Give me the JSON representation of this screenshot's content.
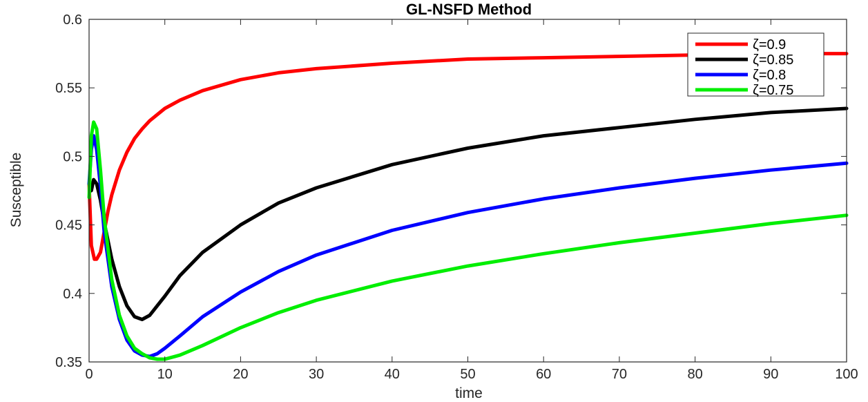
{
  "chart_data": {
    "type": "line",
    "title": "GL-NSFD Method",
    "xlabel": "time",
    "ylabel": "Susceptible",
    "xlim": [
      0,
      100
    ],
    "ylim": [
      0.35,
      0.6
    ],
    "xticks": [
      "0",
      "10",
      "20",
      "30",
      "40",
      "50",
      "60",
      "70",
      "80",
      "90",
      "100"
    ],
    "yticks": [
      "0.35",
      "0.4",
      "0.45",
      "0.5",
      "0.55",
      "0.6"
    ],
    "grid": false,
    "legend_position": "top-right",
    "series": [
      {
        "name": "ζ=0.9",
        "color": "#ff0000",
        "x": [
          0,
          0.3,
          0.7,
          1.0,
          1.5,
          2.0,
          2.5,
          3,
          4,
          5,
          6,
          7,
          8,
          10,
          12,
          15,
          20,
          25,
          30,
          40,
          50,
          60,
          70,
          80,
          90,
          100
        ],
        "y": [
          0.48,
          0.435,
          0.425,
          0.425,
          0.43,
          0.445,
          0.46,
          0.472,
          0.49,
          0.503,
          0.513,
          0.52,
          0.526,
          0.535,
          0.541,
          0.548,
          0.556,
          0.561,
          0.564,
          0.568,
          0.571,
          0.572,
          0.573,
          0.574,
          0.575,
          0.575
        ]
      },
      {
        "name": "ζ=0.85",
        "color": "#000000",
        "x": [
          0,
          0.3,
          0.6,
          1.0,
          1.5,
          2.0,
          3,
          4,
          5,
          6,
          7,
          8,
          9,
          10,
          12,
          15,
          20,
          25,
          30,
          40,
          50,
          60,
          70,
          80,
          90,
          100
        ],
        "y": [
          0.48,
          0.475,
          0.483,
          0.48,
          0.468,
          0.452,
          0.425,
          0.405,
          0.391,
          0.383,
          0.381,
          0.384,
          0.391,
          0.398,
          0.413,
          0.43,
          0.45,
          0.466,
          0.477,
          0.494,
          0.506,
          0.515,
          0.521,
          0.527,
          0.532,
          0.535
        ]
      },
      {
        "name": "ζ=0.8",
        "color": "#0000ff",
        "x": [
          0,
          0.3,
          0.6,
          1.0,
          1.5,
          2.0,
          3,
          4,
          5,
          6,
          7,
          8,
          9,
          10,
          12,
          15,
          20,
          25,
          30,
          40,
          50,
          60,
          70,
          80,
          90,
          100
        ],
        "y": [
          0.48,
          0.505,
          0.515,
          0.505,
          0.478,
          0.445,
          0.405,
          0.381,
          0.366,
          0.358,
          0.355,
          0.354,
          0.356,
          0.36,
          0.369,
          0.383,
          0.401,
          0.416,
          0.428,
          0.446,
          0.459,
          0.469,
          0.477,
          0.484,
          0.49,
          0.495
        ]
      },
      {
        "name": "ζ=0.75",
        "color": "#00ee00",
        "x": [
          0,
          0.3,
          0.6,
          1.0,
          1.5,
          2.0,
          3,
          4,
          5,
          6,
          7,
          8,
          9,
          10,
          12,
          15,
          20,
          25,
          30,
          40,
          50,
          60,
          70,
          80,
          90,
          100
        ],
        "y": [
          0.47,
          0.515,
          0.525,
          0.52,
          0.49,
          0.455,
          0.41,
          0.384,
          0.369,
          0.36,
          0.356,
          0.353,
          0.352,
          0.352,
          0.355,
          0.362,
          0.375,
          0.386,
          0.395,
          0.409,
          0.42,
          0.429,
          0.437,
          0.444,
          0.451,
          0.457
        ]
      }
    ]
  }
}
